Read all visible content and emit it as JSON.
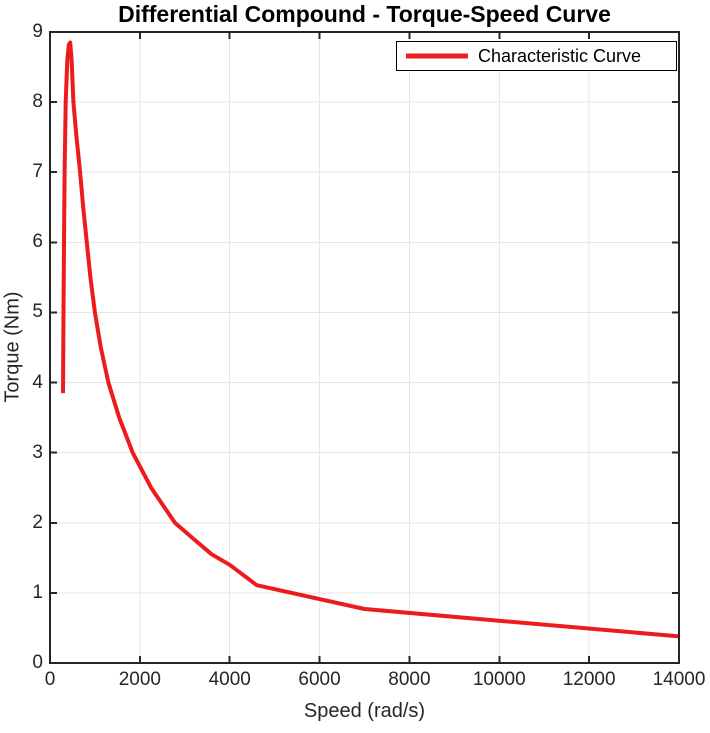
{
  "chart_data": {
    "type": "line",
    "title": "Differential Compound - Torque-Speed Curve",
    "xlabel": "Speed (rad/s)",
    "ylabel": "Torque (Nm)",
    "xlim": [
      0,
      14000
    ],
    "ylim": [
      0,
      9
    ],
    "x_ticks": [
      0,
      2000,
      4000,
      6000,
      8000,
      10000,
      12000,
      14000
    ],
    "y_ticks": [
      0,
      1,
      2,
      3,
      4,
      5,
      6,
      7,
      8,
      9
    ],
    "grid": true,
    "legend": {
      "position": "northeast",
      "entries": [
        {
          "label": "Characteristic Curve",
          "color": "#ed1c1c"
        }
      ]
    },
    "series": [
      {
        "name": "Characteristic Curve",
        "color": "#ed1c1c",
        "line_width": 4,
        "points": [
          [
            290,
            3.85
          ],
          [
            300,
            5.0
          ],
          [
            312,
            6.0
          ],
          [
            325,
            7.0
          ],
          [
            350,
            8.0
          ],
          [
            385,
            8.6
          ],
          [
            420,
            8.82
          ],
          [
            450,
            8.85
          ],
          [
            480,
            8.6
          ],
          [
            520,
            8.0
          ],
          [
            590,
            7.5
          ],
          [
            670,
            7.0
          ],
          [
            740,
            6.5
          ],
          [
            820,
            6.0
          ],
          [
            900,
            5.5
          ],
          [
            1000,
            5.0
          ],
          [
            1130,
            4.5
          ],
          [
            1300,
            4.0
          ],
          [
            1540,
            3.5
          ],
          [
            1840,
            3.0
          ],
          [
            2250,
            2.5
          ],
          [
            2780,
            2.0
          ],
          [
            3230,
            1.75
          ],
          [
            3600,
            1.55
          ],
          [
            4000,
            1.4
          ],
          [
            4600,
            1.11
          ],
          [
            7000,
            0.77
          ],
          [
            14000,
            0.38
          ]
        ]
      }
    ],
    "style": {
      "axis_color": "#262626",
      "grid_color": "#e6e6e6",
      "tick_label_color": "#262626",
      "background": "#ffffff"
    }
  }
}
